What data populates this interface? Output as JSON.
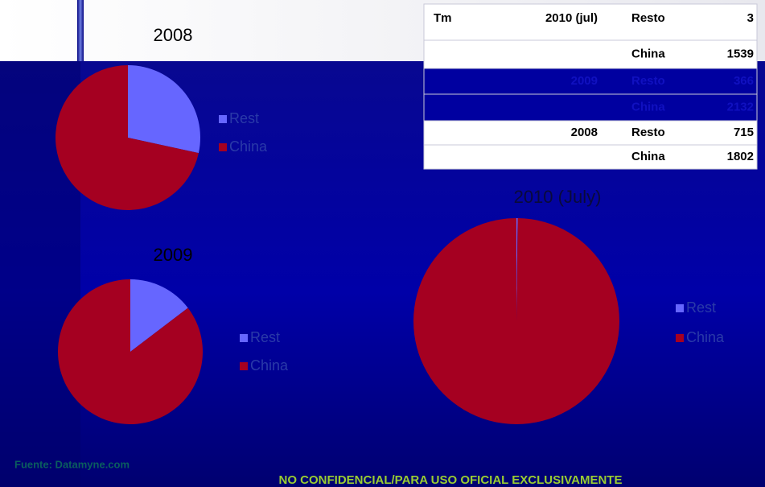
{
  "chart_data": [
    {
      "type": "pie",
      "title": "2008",
      "categories": [
        "Rest",
        "China"
      ],
      "values": [
        715,
        1802
      ],
      "colors": [
        "#6666ff",
        "#a50021"
      ]
    },
    {
      "type": "pie",
      "title": "2009",
      "categories": [
        "Rest",
        "China"
      ],
      "values": [
        366,
        2132
      ],
      "colors": [
        "#6666ff",
        "#a50021"
      ]
    },
    {
      "type": "pie",
      "title": "2010 (July)",
      "categories": [
        "Rest",
        "China"
      ],
      "values": [
        3,
        1539
      ],
      "colors": [
        "#6666ff",
        "#a50021"
      ]
    }
  ],
  "table": {
    "header": "Tm",
    "groups": [
      {
        "year": "2010 (jul)",
        "rows": [
          {
            "label": "Resto",
            "value": "3"
          },
          {
            "label": "China",
            "value": "1539"
          }
        ]
      },
      {
        "year": "2009",
        "rows": [
          {
            "label": "Resto",
            "value": "366"
          },
          {
            "label": "China",
            "value": "2132"
          }
        ]
      },
      {
        "year": "2008",
        "rows": [
          {
            "label": "Resto",
            "value": "715"
          },
          {
            "label": "China",
            "value": "1802"
          }
        ]
      }
    ]
  },
  "footer": {
    "source": "Fuente: Datamyne.com",
    "notice": "NO CONFIDENCIAL/PARA USO OFICIAL EXCLUSIVAMENTE"
  }
}
